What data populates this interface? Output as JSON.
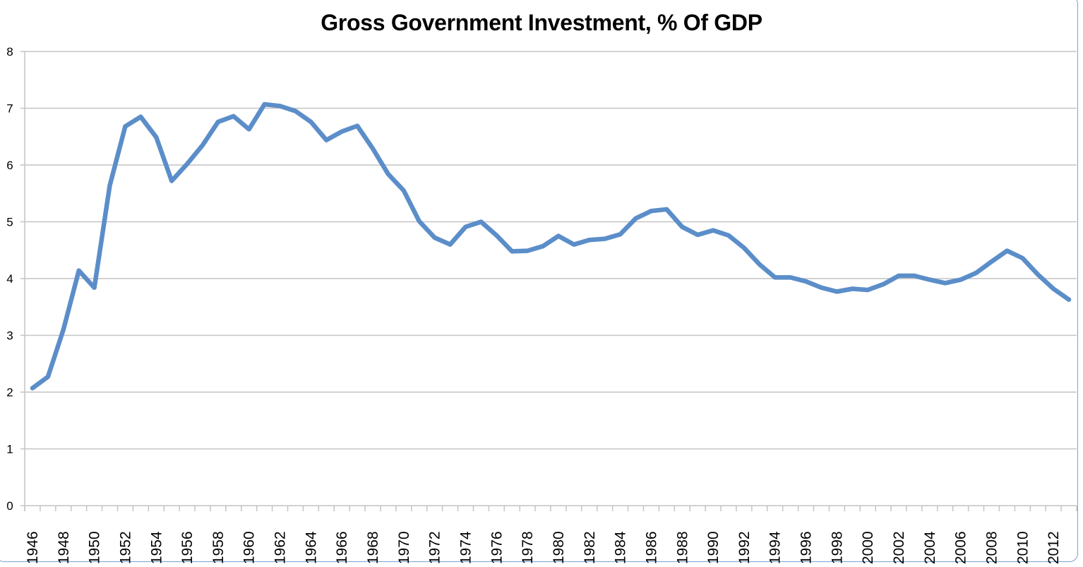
{
  "chart_data": {
    "type": "line",
    "title": "Gross Government Investment, % Of GDP",
    "xlabel": "",
    "ylabel": "",
    "ylim": [
      0,
      8
    ],
    "yticks": [
      "0",
      "1",
      "2",
      "3",
      "4",
      "5",
      "6",
      "7",
      "8"
    ],
    "grid": true,
    "legend": "none",
    "x": [
      1946,
      1947,
      1948,
      1949,
      1950,
      1951,
      1952,
      1953,
      1954,
      1955,
      1956,
      1957,
      1958,
      1959,
      1960,
      1961,
      1962,
      1963,
      1964,
      1965,
      1966,
      1967,
      1968,
      1969,
      1970,
      1971,
      1972,
      1973,
      1974,
      1975,
      1976,
      1977,
      1978,
      1979,
      1980,
      1981,
      1982,
      1983,
      1984,
      1985,
      1986,
      1987,
      1988,
      1989,
      1990,
      1991,
      1992,
      1993,
      1994,
      1995,
      1996,
      1997,
      1998,
      1999,
      2000,
      2001,
      2002,
      2003,
      2004,
      2005,
      2006,
      2007,
      2008,
      2009,
      2010,
      2011,
      2012,
      2013
    ],
    "xtick_labels": [
      "1946",
      "1948",
      "1950",
      "1952",
      "1954",
      "1956",
      "1958",
      "1960",
      "1962",
      "1964",
      "1966",
      "1968",
      "1970",
      "1972",
      "1974",
      "1976",
      "1978",
      "1980",
      "1982",
      "1984",
      "1986",
      "1988",
      "1990",
      "1992",
      "1994",
      "1996",
      "1998",
      "2000",
      "2002",
      "2004",
      "2006",
      "2008",
      "2010",
      "2012"
    ],
    "series": [
      {
        "name": "Gross Government Investment",
        "color": "#5b8ec9",
        "values": [
          2.07,
          2.27,
          3.1,
          4.14,
          3.84,
          5.64,
          6.68,
          6.85,
          6.49,
          5.72,
          6.02,
          6.35,
          6.76,
          6.86,
          6.63,
          7.07,
          7.04,
          6.95,
          6.76,
          6.44,
          6.59,
          6.69,
          6.29,
          5.84,
          5.55,
          5.01,
          4.72,
          4.6,
          4.91,
          5.0,
          4.76,
          4.48,
          4.49,
          4.57,
          4.75,
          4.6,
          4.68,
          4.7,
          4.78,
          5.06,
          5.19,
          5.22,
          4.91,
          4.77,
          4.85,
          4.76,
          4.54,
          4.25,
          4.02,
          4.02,
          3.95,
          3.84,
          3.77,
          3.82,
          3.8,
          3.9,
          4.05,
          4.05,
          3.98,
          3.92,
          3.98,
          4.1,
          4.3,
          4.49,
          4.36,
          4.07,
          3.82,
          3.63
        ]
      }
    ]
  },
  "colors": {
    "line": "#5b8ec9",
    "grid": "#c4c4c4",
    "frame": "#7d9fd6"
  }
}
